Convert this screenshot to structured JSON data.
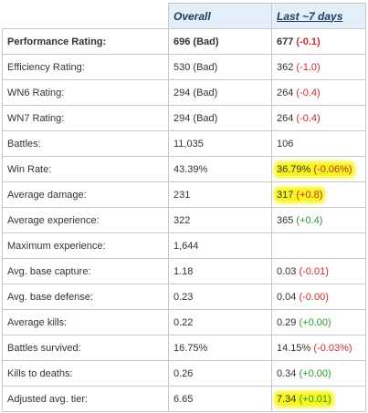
{
  "header": {
    "overall": "Overall",
    "last7": "Last ~7 days"
  },
  "colors": {
    "header_bg": "#e4eef9",
    "negative": "#cc2a2a",
    "positive": "#2a9a2a",
    "highlight": "#f6f51f"
  },
  "rows": [
    {
      "label": "Performance Rating:",
      "overall": "696 (Bad)",
      "recent": "677",
      "delta": "(-0.1)",
      "delta_class": "neg"
    },
    {
      "label": "Efficiency Rating:",
      "overall": "530 (Bad)",
      "recent": "362",
      "delta": "(-1.0)",
      "delta_class": "neg"
    },
    {
      "label": "WN6 Rating:",
      "overall": "294 (Bad)",
      "recent": "264",
      "delta": "(-0.4)",
      "delta_class": "neg"
    },
    {
      "label": "WN7 Rating:",
      "overall": "294 (Bad)",
      "recent": "264",
      "delta": "(-0.4)",
      "delta_class": "neg"
    },
    {
      "label": "Battles:",
      "overall": "11,035",
      "recent": "106",
      "delta": "",
      "delta_class": ""
    },
    {
      "label": "Win Rate:",
      "overall": "43.39%",
      "recent": "36.79%",
      "delta": "(-0.06%)",
      "delta_class": "neg",
      "highlight": true
    },
    {
      "label": "Average damage:",
      "overall": "231",
      "recent": "317",
      "delta": "(+0.8)",
      "delta_class": "neg",
      "highlight": true
    },
    {
      "label": "Average experience:",
      "overall": "322",
      "recent": "365",
      "delta": "(+0.4)",
      "delta_class": "pos"
    },
    {
      "label": "Maximum experience:",
      "overall": "1,644",
      "recent": "",
      "delta": "",
      "delta_class": ""
    },
    {
      "label": "Avg. base capture:",
      "overall": "1.18",
      "recent": "0.03",
      "delta": "(-0.01)",
      "delta_class": "neg"
    },
    {
      "label": "Avg. base defense:",
      "overall": "0.23",
      "recent": "0.04",
      "delta": "(-0.00)",
      "delta_class": "neg"
    },
    {
      "label": "Average kills:",
      "overall": "0.22",
      "recent": "0.29",
      "delta": "(+0.00)",
      "delta_class": "pos"
    },
    {
      "label": "Battles survived:",
      "overall": "16.75%",
      "recent": "14.15%",
      "delta": "(-0.03%)",
      "delta_class": "neg"
    },
    {
      "label": "Kills to deaths:",
      "overall": "0.26",
      "recent": "0.34",
      "delta": "(+0.00)",
      "delta_class": "pos"
    },
    {
      "label": "Adjusted avg. tier:",
      "overall": "6.65",
      "recent": "7.34",
      "delta": "(+0.01)",
      "delta_class": "pos",
      "highlight": true
    }
  ]
}
